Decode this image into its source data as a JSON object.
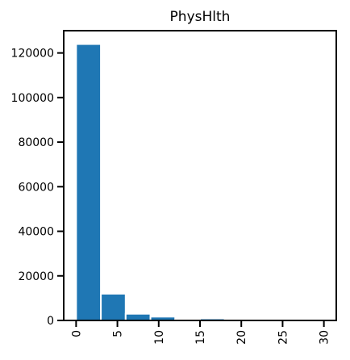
{
  "chart_data": {
    "type": "bar",
    "title": "PhysHlth",
    "xlabel": "",
    "ylabel": "",
    "grid": false,
    "legend": "none",
    "colors": {
      "bar": "#1f77b4",
      "bar_edge": "#ffffff",
      "axis": "#000000",
      "background": "#ffffff"
    },
    "xlim": [
      -1.5,
      31.5
    ],
    "ylim": [
      0,
      130000
    ],
    "x_ticks": [
      0,
      5,
      10,
      15,
      20,
      25,
      30
    ],
    "x_tick_labels": [
      "0",
      "5",
      "10",
      "15",
      "20",
      "25",
      "30"
    ],
    "y_ticks": [
      0,
      20000,
      40000,
      60000,
      80000,
      100000,
      120000
    ],
    "y_tick_labels": [
      "0",
      "20000",
      "40000",
      "60000",
      "80000",
      "100000",
      "120000"
    ],
    "bins": [
      {
        "x0": 0,
        "x1": 3,
        "value": 124000
      },
      {
        "x0": 3,
        "x1": 6,
        "value": 12000
      },
      {
        "x0": 6,
        "x1": 9,
        "value": 3000
      },
      {
        "x0": 9,
        "x1": 12,
        "value": 1700
      },
      {
        "x0": 12,
        "x1": 15,
        "value": 400
      },
      {
        "x0": 15,
        "x1": 18,
        "value": 900
      },
      {
        "x0": 18,
        "x1": 21,
        "value": 300
      },
      {
        "x0": 21,
        "x1": 24,
        "value": 200
      },
      {
        "x0": 24,
        "x1": 27,
        "value": 200
      },
      {
        "x0": 27,
        "x1": 30,
        "value": 600
      }
    ]
  }
}
